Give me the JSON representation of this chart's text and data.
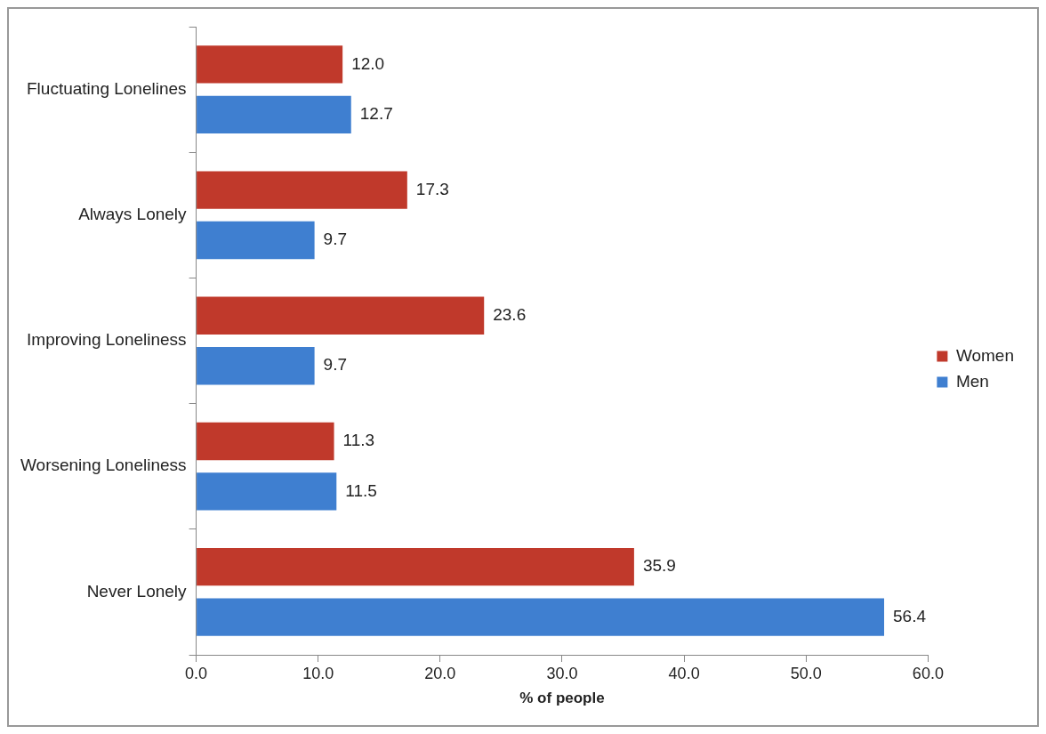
{
  "chart_data": {
    "type": "bar",
    "orientation": "horizontal",
    "xlabel": "% of people",
    "categories": [
      "Fluctuating Lonelines",
      "Always Lonely",
      "Improving Loneliness",
      "Worsening Loneliness",
      "Never Lonely"
    ],
    "series": [
      {
        "name": "Women",
        "color": "#c0392b",
        "values": [
          12.0,
          17.3,
          23.6,
          11.3,
          35.9
        ],
        "value_labels": [
          "12.0",
          "17.3",
          "23.6",
          "11.3",
          "35.9"
        ]
      },
      {
        "name": "Men",
        "color": "#3f7fd0",
        "values": [
          12.7,
          9.7,
          9.7,
          11.5,
          56.4
        ],
        "value_labels": [
          "12.7",
          "9.7",
          "9.7",
          "11.5",
          "56.4"
        ]
      }
    ],
    "xlim": [
      0,
      60
    ],
    "xticks": [
      {
        "value": 0,
        "label": "0.0"
      },
      {
        "value": 10,
        "label": "10.0"
      },
      {
        "value": 20,
        "label": "20.0"
      },
      {
        "value": 30,
        "label": "30.0"
      },
      {
        "value": 40,
        "label": "40.0"
      },
      {
        "value": 50,
        "label": "50.0"
      },
      {
        "value": 60,
        "label": "60.0"
      }
    ],
    "grid": false,
    "legend": "right"
  }
}
